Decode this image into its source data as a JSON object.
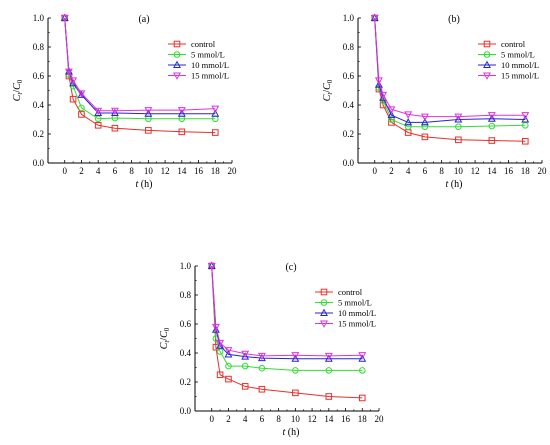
{
  "figure": {
    "y_axis_label_main": "C",
    "y_axis_label_sub_t": "t",
    "y_axis_label_sep": "/",
    "y_axis_label_sub_0": "0"
  },
  "chart_data": [
    {
      "type": "line",
      "panel_label": "(a)",
      "xlabel": "t (h)",
      "ylabel": "Ct/C0",
      "xlim": [
        -2,
        20
      ],
      "ylim": [
        0,
        1.0
      ],
      "x_ticks": [
        "0",
        "2",
        "4",
        "6",
        "8",
        "10",
        "12",
        "14",
        "16",
        "18",
        "20"
      ],
      "y_ticks": [
        "0.0",
        "0.2",
        "0.4",
        "0.6",
        "0.8",
        "1.0"
      ],
      "legend_position": "top-right",
      "series": [
        {
          "name": "control",
          "color": "#e8302a",
          "marker": "square",
          "x": [
            0,
            0.5,
            1,
            2,
            4,
            6,
            10,
            14,
            18
          ],
          "y": [
            1.0,
            0.6,
            0.44,
            0.335,
            0.26,
            0.24,
            0.225,
            0.215,
            0.21
          ]
        },
        {
          "name": "5 mmol/L",
          "color": "#33dd33",
          "marker": "circle",
          "x": [
            0,
            0.5,
            1,
            2,
            4,
            6,
            10,
            14,
            18
          ],
          "y": [
            1.0,
            0.61,
            0.53,
            0.38,
            0.305,
            0.31,
            0.305,
            0.305,
            0.305
          ]
        },
        {
          "name": "10 mmol/L",
          "color": "#2525d0",
          "marker": "triangle",
          "x": [
            0,
            0.5,
            1,
            2,
            4,
            6,
            10,
            14,
            18
          ],
          "y": [
            1.0,
            0.63,
            0.55,
            0.47,
            0.345,
            0.345,
            0.34,
            0.34,
            0.34
          ]
        },
        {
          "name": "15 mmol/L",
          "color": "#e030e0",
          "marker": "triangle-down",
          "x": [
            0,
            0.5,
            1,
            2,
            4,
            6,
            10,
            14,
            18
          ],
          "y": [
            1.0,
            0.63,
            0.57,
            0.48,
            0.36,
            0.36,
            0.365,
            0.365,
            0.375
          ]
        }
      ]
    },
    {
      "type": "line",
      "panel_label": "(b)",
      "xlabel": "t (h)",
      "ylabel": "Ct/C0",
      "xlim": [
        -2,
        20
      ],
      "ylim": [
        0,
        1.0
      ],
      "x_ticks": [
        "0",
        "2",
        "4",
        "6",
        "8",
        "10",
        "12",
        "14",
        "16",
        "18",
        "20"
      ],
      "y_ticks": [
        "0.0",
        "0.2",
        "0.4",
        "0.6",
        "0.8",
        "1.0"
      ],
      "legend_position": "top-right",
      "series": [
        {
          "name": "control",
          "color": "#e8302a",
          "marker": "square",
          "x": [
            0,
            0.5,
            1,
            2,
            4,
            6,
            10,
            14,
            18
          ],
          "y": [
            1.0,
            0.51,
            0.4,
            0.28,
            0.21,
            0.18,
            0.16,
            0.155,
            0.15
          ]
        },
        {
          "name": "5 mmol/L",
          "color": "#33dd33",
          "marker": "circle",
          "x": [
            0,
            0.5,
            1,
            2,
            4,
            6,
            10,
            14,
            18
          ],
          "y": [
            1.0,
            0.52,
            0.43,
            0.3,
            0.25,
            0.25,
            0.25,
            0.255,
            0.26
          ]
        },
        {
          "name": "10 mmol/L",
          "color": "#2525d0",
          "marker": "triangle",
          "x": [
            0,
            0.5,
            1,
            2,
            4,
            6,
            10,
            14,
            18
          ],
          "y": [
            1.0,
            0.54,
            0.45,
            0.33,
            0.28,
            0.28,
            0.3,
            0.305,
            0.3
          ]
        },
        {
          "name": "15 mmol/L",
          "color": "#e030e0",
          "marker": "triangle-down",
          "x": [
            0,
            0.5,
            1,
            2,
            4,
            6,
            10,
            14,
            18
          ],
          "y": [
            1.0,
            0.57,
            0.47,
            0.37,
            0.335,
            0.32,
            0.32,
            0.33,
            0.33
          ]
        }
      ]
    },
    {
      "type": "line",
      "panel_label": "(c)",
      "xlabel": "t (h)",
      "ylabel": "Ct/C0",
      "xlim": [
        -2,
        20
      ],
      "ylim": [
        0,
        1.0
      ],
      "x_ticks": [
        "0",
        "2",
        "4",
        "6",
        "8",
        "10",
        "12",
        "14",
        "16",
        "18",
        "20"
      ],
      "y_ticks": [
        "0.0",
        "0.2",
        "0.4",
        "0.6",
        "0.8",
        "1.0"
      ],
      "legend_position": "top-right",
      "series": [
        {
          "name": "control",
          "color": "#e8302a",
          "marker": "square",
          "x": [
            0,
            0.5,
            1,
            2,
            4,
            6,
            10,
            14,
            18
          ],
          "y": [
            1.0,
            0.44,
            0.25,
            0.22,
            0.17,
            0.15,
            0.125,
            0.1,
            0.09
          ]
        },
        {
          "name": "5 mmol/L",
          "color": "#33dd33",
          "marker": "circle",
          "x": [
            0,
            0.5,
            1,
            2,
            4,
            6,
            10,
            14,
            18
          ],
          "y": [
            1.0,
            0.5,
            0.41,
            0.31,
            0.31,
            0.295,
            0.28,
            0.28,
            0.28
          ]
        },
        {
          "name": "10 mmol/L",
          "color": "#2525d0",
          "marker": "triangle",
          "x": [
            0,
            0.5,
            1,
            2,
            4,
            6,
            10,
            14,
            18
          ],
          "y": [
            1.0,
            0.56,
            0.45,
            0.39,
            0.375,
            0.365,
            0.36,
            0.36,
            0.36
          ]
        },
        {
          "name": "15 mmol/L",
          "color": "#e030e0",
          "marker": "triangle-down",
          "x": [
            0,
            0.5,
            1,
            2,
            4,
            6,
            10,
            14,
            18
          ],
          "y": [
            1.0,
            0.58,
            0.47,
            0.42,
            0.395,
            0.38,
            0.385,
            0.38,
            0.385
          ]
        }
      ]
    }
  ]
}
